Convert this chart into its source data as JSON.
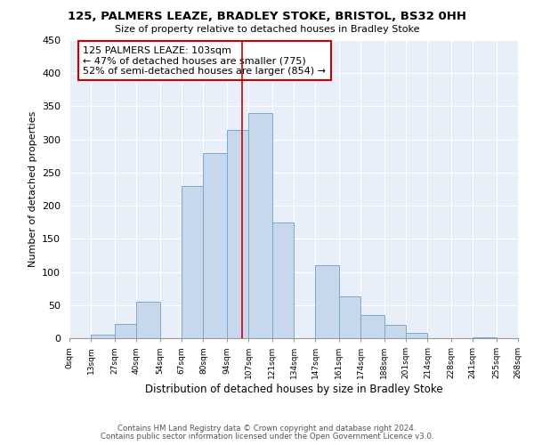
{
  "title1": "125, PALMERS LEAZE, BRADLEY STOKE, BRISTOL, BS32 0HH",
  "title2": "Size of property relative to detached houses in Bradley Stoke",
  "xlabel": "Distribution of detached houses by size in Bradley Stoke",
  "ylabel": "Number of detached properties",
  "bin_edges": [
    0,
    13,
    27,
    40,
    54,
    67,
    80,
    94,
    107,
    121,
    134,
    147,
    161,
    174,
    188,
    201,
    214,
    228,
    241,
    255,
    268
  ],
  "bin_counts": [
    0,
    5,
    22,
    55,
    0,
    230,
    280,
    315,
    340,
    175,
    0,
    110,
    63,
    35,
    20,
    8,
    0,
    0,
    2,
    0
  ],
  "bar_color": "#c8d8ec",
  "bar_edge_color": "#7aaace",
  "tick_labels": [
    "0sqm",
    "13sqm",
    "27sqm",
    "40sqm",
    "54sqm",
    "67sqm",
    "80sqm",
    "94sqm",
    "107sqm",
    "121sqm",
    "134sqm",
    "147sqm",
    "161sqm",
    "174sqm",
    "188sqm",
    "201sqm",
    "214sqm",
    "228sqm",
    "241sqm",
    "255sqm",
    "268sqm"
  ],
  "vline_x": 103,
  "vline_color": "#cc0000",
  "annotation_title": "125 PALMERS LEAZE: 103sqm",
  "annotation_line1": "← 47% of detached houses are smaller (775)",
  "annotation_line2": "52% of semi-detached houses are larger (854) →",
  "annotation_box_color": "#ffffff",
  "annotation_box_edge": "#cc0000",
  "ylim": [
    0,
    450
  ],
  "yticks": [
    0,
    50,
    100,
    150,
    200,
    250,
    300,
    350,
    400,
    450
  ],
  "footer1": "Contains HM Land Registry data © Crown copyright and database right 2024.",
  "footer2": "Contains public sector information licensed under the Open Government Licence v3.0.",
  "bg_color": "#e8eff8",
  "fig_bg_color": "#ffffff",
  "grid_color": "#ffffff"
}
